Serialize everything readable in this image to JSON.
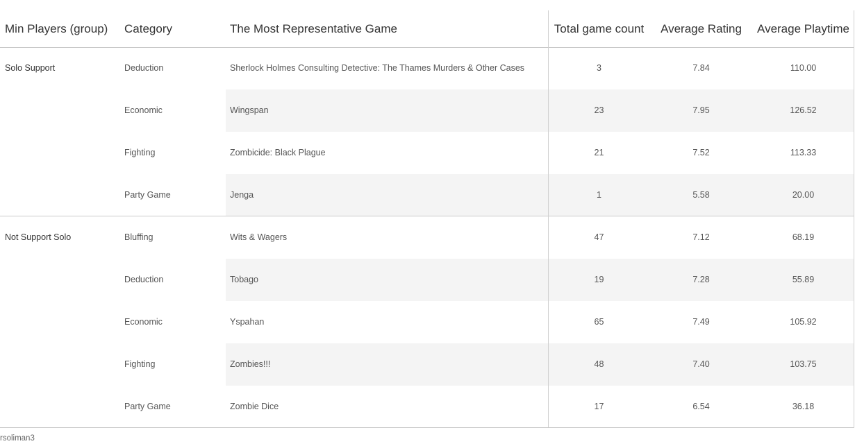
{
  "headers": {
    "min_players": "Min Players (group)",
    "category": "Category",
    "game": "The Most Representative Game",
    "count": "Total game count",
    "rating": "Average Rating",
    "playtime": "Average Playtime"
  },
  "groups": [
    {
      "label": "Solo Support",
      "rows": [
        {
          "category": "Deduction",
          "game": "Sherlock Holmes Consulting Detective: The Thames Murders & Other Cases",
          "count": "3",
          "rating": "7.84",
          "playtime": "110.00"
        },
        {
          "category": "Economic",
          "game": "Wingspan",
          "count": "23",
          "rating": "7.95",
          "playtime": "126.52"
        },
        {
          "category": "Fighting",
          "game": "Zombicide: Black Plague",
          "count": "21",
          "rating": "7.52",
          "playtime": "113.33"
        },
        {
          "category": "Party Game",
          "game": "Jenga",
          "count": "1",
          "rating": "5.58",
          "playtime": "20.00"
        }
      ]
    },
    {
      "label": "Not Support Solo",
      "rows": [
        {
          "category": "Bluffing",
          "game": "Wits & Wagers",
          "count": "47",
          "rating": "7.12",
          "playtime": "68.19"
        },
        {
          "category": "Deduction",
          "game": "Tobago",
          "count": "19",
          "rating": "7.28",
          "playtime": "55.89"
        },
        {
          "category": "Economic",
          "game": "Yspahan",
          "count": "65",
          "rating": "7.49",
          "playtime": "105.92"
        },
        {
          "category": "Fighting",
          "game": "Zombies!!!",
          "count": "48",
          "rating": "7.40",
          "playtime": "103.75"
        },
        {
          "category": "Party Game",
          "game": "Zombie Dice",
          "count": "17",
          "rating": "6.54",
          "playtime": "36.18"
        }
      ]
    }
  ],
  "footer": {
    "author": "rsoliman3"
  }
}
